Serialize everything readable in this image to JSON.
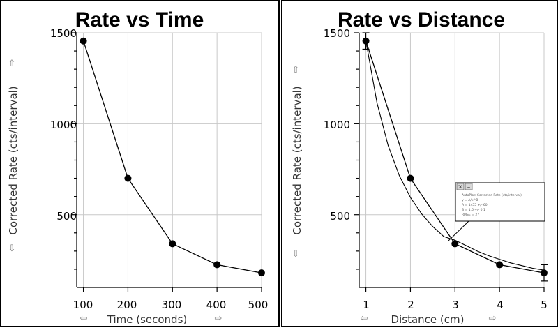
{
  "chart_data": [
    {
      "type": "line",
      "title": "Rate vs Time",
      "xlabel": "Time (seconds)",
      "ylabel": "Corrected Rate (cts/interval)",
      "xlim": [
        85,
        500
      ],
      "ylim": [
        100,
        1500
      ],
      "xticks": [
        "100",
        "200",
        "300",
        "400",
        "500"
      ],
      "yticks": [
        "500",
        "1000",
        "1500"
      ],
      "grid": true,
      "series": [
        {
          "x": [
            100,
            200,
            300,
            400,
            500
          ],
          "y": [
            1455,
            700,
            340,
            225,
            180
          ]
        }
      ]
    },
    {
      "type": "line",
      "title": "Rate vs Distance",
      "xlabel": "Distance (cm)",
      "ylabel": "Corrected Rate (cts/interval)",
      "xlim": [
        0.85,
        5
      ],
      "ylim": [
        100,
        1500
      ],
      "xticks": [
        "1",
        "2",
        "3",
        "4",
        "5"
      ],
      "yticks": [
        "500",
        "1000",
        "1500"
      ],
      "grid": true,
      "series": [
        {
          "x": [
            1,
            2,
            3,
            4,
            5
          ],
          "y": [
            1455,
            700,
            340,
            225,
            180
          ]
        },
        {
          "x": [
            1,
            1.25,
            1.5,
            1.75,
            2,
            2.25,
            2.5,
            2.75,
            3,
            3.25,
            3.5,
            3.75,
            4,
            4.25,
            4.5,
            4.75,
            5
          ],
          "y": [
            1455,
            1115,
            880,
            715,
            595,
            505,
            435,
            380,
            360,
            330,
            300,
            275,
            255,
            235,
            220,
            205,
            195
          ]
        }
      ]
    }
  ],
  "arrows": {
    "up": "⇧",
    "down": "⇩",
    "left": "⇦",
    "right": "⇨"
  },
  "popup": {
    "close_glyph": "×",
    "minimize_glyph": "–",
    "lines": [
      "AutoPlot: Corrected Rate (cts/interval)",
      "y = A/x^B",
      "A = 1455 +/- 60",
      "B = 1.6 +/- 0.1",
      "RMSE = 27"
    ]
  }
}
